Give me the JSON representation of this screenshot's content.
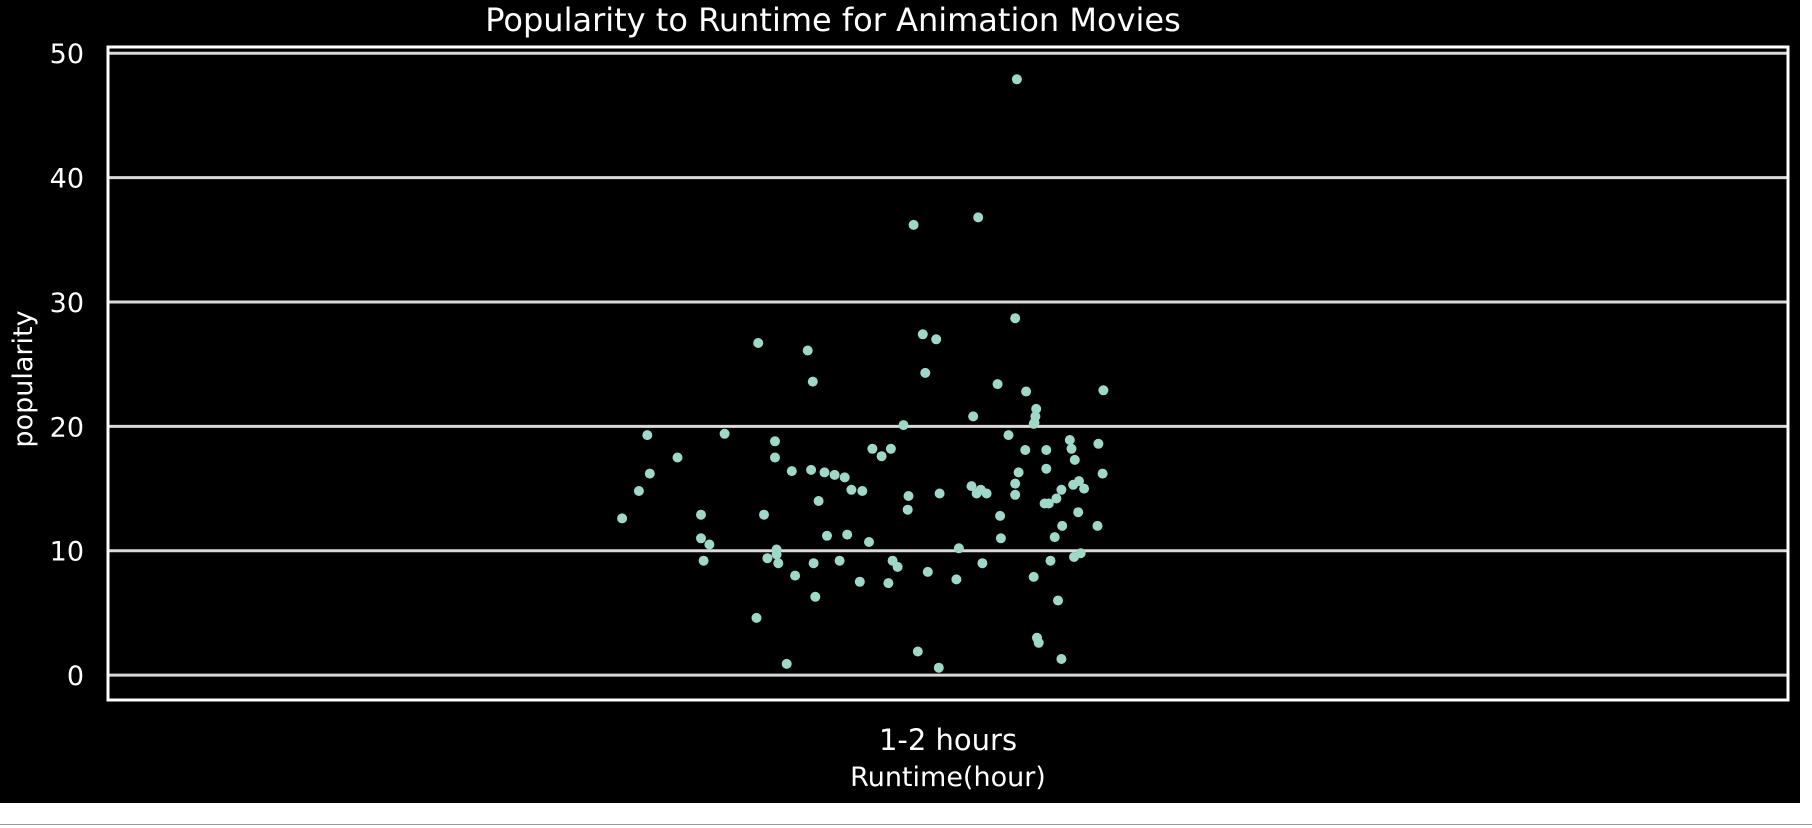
{
  "chart_data": {
    "type": "scatter",
    "title": "Popularity  to Runtime for Animation Movies",
    "xlabel": "Runtime(hour)",
    "ylabel": "popularity",
    "categories": [
      "1-2 hours"
    ],
    "ylim": [
      -2,
      50.5
    ],
    "yticks": [
      0,
      10,
      20,
      30,
      40,
      50
    ],
    "grid": "horizontal",
    "legend": "none",
    "colors": {
      "background": "#000000",
      "grid": "#d9d9d9",
      "points": "#9fd8c8",
      "text": "#ffffff"
    },
    "series": [
      {
        "category": "1-2 hours",
        "points": [
          [
            -0.388,
            12.6
          ],
          [
            -0.368,
            14.8
          ],
          [
            -0.355,
            16.2
          ],
          [
            -0.358,
            19.3
          ],
          [
            -0.322,
            17.5
          ],
          [
            -0.294,
            12.9
          ],
          [
            -0.294,
            11.0
          ],
          [
            -0.291,
            9.2
          ],
          [
            -0.284,
            10.5
          ],
          [
            -0.266,
            19.4
          ],
          [
            -0.226,
            26.7
          ],
          [
            -0.228,
            4.6
          ],
          [
            -0.219,
            12.9
          ],
          [
            -0.215,
            9.4
          ],
          [
            -0.206,
            18.8
          ],
          [
            -0.206,
            17.5
          ],
          [
            -0.204,
            10.1
          ],
          [
            -0.204,
            9.7
          ],
          [
            -0.202,
            9.0
          ],
          [
            -0.192,
            0.9
          ],
          [
            -0.186,
            16.4
          ],
          [
            -0.182,
            8.0
          ],
          [
            -0.167,
            26.1
          ],
          [
            -0.163,
            16.5
          ],
          [
            -0.161,
            23.6
          ],
          [
            -0.16,
            9.0
          ],
          [
            -0.158,
            6.3
          ],
          [
            -0.154,
            14.0
          ],
          [
            -0.147,
            16.3
          ],
          [
            -0.144,
            11.2
          ],
          [
            -0.135,
            16.1
          ],
          [
            -0.129,
            9.2
          ],
          [
            -0.123,
            15.9
          ],
          [
            -0.12,
            11.3
          ],
          [
            -0.115,
            14.9
          ],
          [
            -0.105,
            7.5
          ],
          [
            -0.102,
            14.8
          ],
          [
            -0.094,
            10.7
          ],
          [
            -0.09,
            18.2
          ],
          [
            -0.079,
            17.6
          ],
          [
            -0.068,
            18.2
          ],
          [
            -0.066,
            9.2
          ],
          [
            -0.071,
            7.4
          ],
          [
            -0.06,
            8.7
          ],
          [
            -0.053,
            20.1
          ],
          [
            -0.048,
            13.3
          ],
          [
            -0.047,
            14.4
          ],
          [
            -0.041,
            36.2
          ],
          [
            -0.036,
            1.9
          ],
          [
            -0.03,
            27.4
          ],
          [
            -0.027,
            24.3
          ],
          [
            -0.024,
            8.3
          ],
          [
            -0.014,
            27.0
          ],
          [
            -0.01,
            14.6
          ],
          [
            -0.011,
            0.6
          ],
          [
            0.01,
            7.7
          ],
          [
            0.013,
            10.2
          ],
          [
            0.03,
            20.8
          ],
          [
            0.028,
            15.2
          ],
          [
            0.034,
            14.6
          ],
          [
            0.036,
            36.8
          ],
          [
            0.039,
            14.9
          ],
          [
            0.041,
            9.0
          ],
          [
            0.046,
            14.6
          ],
          [
            0.059,
            23.4
          ],
          [
            0.062,
            12.8
          ],
          [
            0.063,
            11.0
          ],
          [
            0.072,
            19.3
          ],
          [
            0.08,
            28.7
          ],
          [
            0.084,
            16.3
          ],
          [
            0.08,
            15.4
          ],
          [
            0.08,
            14.5
          ],
          [
            0.082,
            47.9
          ],
          [
            0.092,
            18.1
          ],
          [
            0.093,
            22.8
          ],
          [
            0.102,
            20.2
          ],
          [
            0.105,
            21.4
          ],
          [
            0.104,
            20.8
          ],
          [
            0.103,
            20.3
          ],
          [
            0.102,
            7.9
          ],
          [
            0.106,
            3.0
          ],
          [
            0.108,
            2.6
          ],
          [
            0.115,
            13.8
          ],
          [
            0.117,
            16.6
          ],
          [
            0.117,
            18.1
          ],
          [
            0.12,
            13.8
          ],
          [
            0.122,
            9.2
          ],
          [
            0.127,
            11.1
          ],
          [
            0.129,
            14.2
          ],
          [
            0.131,
            6.0
          ],
          [
            0.135,
            14.9
          ],
          [
            0.135,
            1.3
          ],
          [
            0.136,
            12.0
          ],
          [
            0.145,
            18.9
          ],
          [
            0.147,
            18.2
          ],
          [
            0.149,
            15.3
          ],
          [
            0.15,
            9.5
          ],
          [
            0.151,
            17.3
          ],
          [
            0.155,
            13.1
          ],
          [
            0.156,
            15.6
          ],
          [
            0.158,
            9.8
          ],
          [
            0.162,
            15.0
          ],
          [
            0.178,
            12.0
          ],
          [
            0.179,
            18.6
          ],
          [
            0.184,
            16.2
          ],
          [
            0.185,
            22.9
          ]
        ]
      }
    ]
  }
}
